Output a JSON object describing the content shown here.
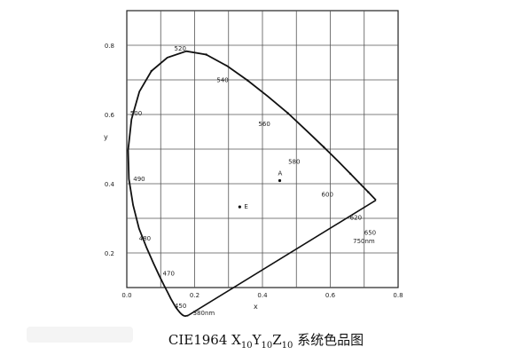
{
  "diagram": {
    "x_axis_label": "x",
    "y_axis_label": "y",
    "x_ticks": [
      {
        "value": 0.0,
        "label": "0.0"
      },
      {
        "value": 0.2,
        "label": "0.2"
      },
      {
        "value": 0.4,
        "label": "0.4"
      },
      {
        "value": 0.6,
        "label": "0.6"
      },
      {
        "value": 0.8,
        "label": "0.8"
      }
    ],
    "y_ticks": [
      {
        "value": 0.2,
        "label": "0.2"
      },
      {
        "value": 0.4,
        "label": "0.4"
      },
      {
        "value": 0.6,
        "label": "0.6"
      },
      {
        "value": 0.8,
        "label": "0.8"
      }
    ],
    "wavelength_labels": [
      "520",
      "540",
      "560",
      "580",
      "600",
      "620",
      "650",
      "750nm",
      "380nm",
      "450",
      "470",
      "480",
      "490",
      "500"
    ],
    "points": [
      {
        "label": "A",
        "x": 0.451,
        "y": 0.409
      },
      {
        "label": "E",
        "x": 0.333,
        "y": 0.333
      }
    ]
  },
  "caption": {
    "prefix": "CIE1964 ",
    "x": "X",
    "x_sub": "10",
    "y": "Y",
    "y_sub": "10",
    "z": "Z",
    "z_sub": "10",
    "suffix": " 系统色品图"
  }
}
